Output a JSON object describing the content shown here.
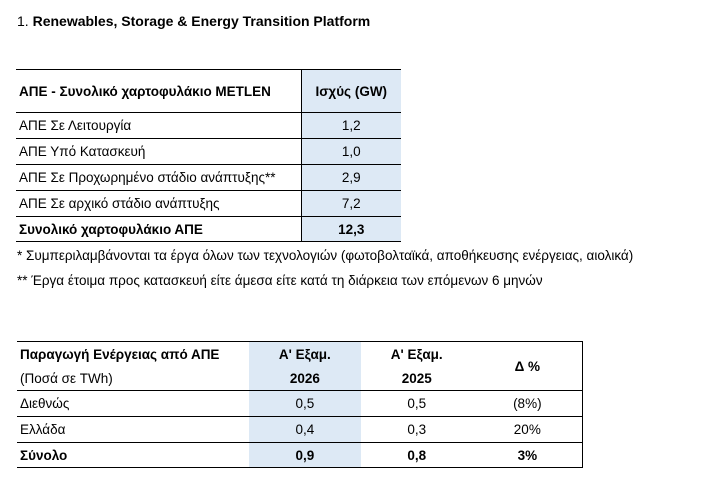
{
  "heading": {
    "number": "1.",
    "title": "Renewables, Storage & Energy Transition Platform"
  },
  "portfolio_table": {
    "header": {
      "label": "ΑΠΕ - Συνολικό χαρτοφυλάκιο METLEN",
      "value": "Ισχύς (GW)"
    },
    "rows": [
      {
        "label": "ΑΠΕ Σε Λειτουργία",
        "value": "1,2"
      },
      {
        "label": "ΑΠΕ Υπό Κατασκευή",
        "value": "1,0"
      },
      {
        "label": "ΑΠΕ Σε Προχωρημένο στάδιο ανάπτυξης**",
        "value": "2,9"
      },
      {
        "label": "ΑΠΕ Σε αρχικό στάδιο ανάπτυξης",
        "value": "7,2"
      }
    ],
    "total": {
      "label": "Συνολικό χαρτοφυλάκιο ΑΠΕ",
      "value": "12,3"
    }
  },
  "notes": [
    "* Συμπεριλαμβάνονται τα έργα όλων των τεχνολογιών (φωτοβολταϊκά, αποθήκευσης ενέργειας, αιολικά)",
    "** Έργα έτοιμα προς κατασκευή είτε άμεσα είτε κατά τη διάρκεια των επόμενων 6 μηνών"
  ],
  "production_table": {
    "header": {
      "title": "Παραγωγή Ενέργειας από ΑΠΕ",
      "subtitle": "(Ποσά σε TWh)",
      "col1_line1": "Α' Εξαμ.",
      "col1_line2": "2026",
      "col2_line1": "Α' Εξαμ.",
      "col2_line2": "2025",
      "col3": "Δ %"
    },
    "rows": [
      {
        "label": "Διεθνώς",
        "v2026": "0,5",
        "v2025": "0,5",
        "delta": "(8%)"
      },
      {
        "label": "Ελλάδα",
        "v2026": "0,4",
        "v2025": "0,3",
        "delta": "20%"
      }
    ],
    "total": {
      "label": "Σύνολο",
      "v2026": "0,9",
      "v2025": "0,8",
      "delta": "3%"
    }
  }
}
